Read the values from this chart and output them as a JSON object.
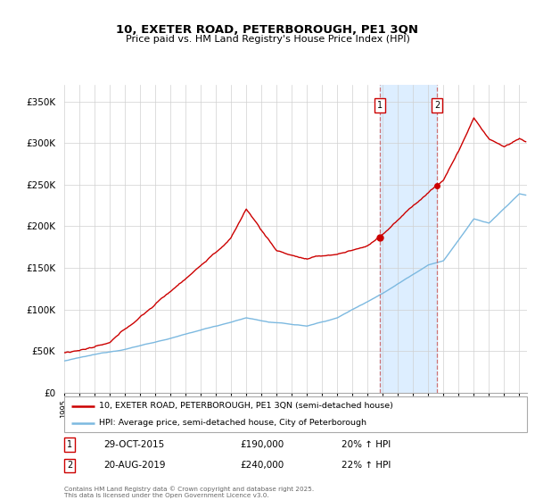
{
  "title": "10, EXETER ROAD, PETERBOROUGH, PE1 3QN",
  "subtitle": "Price paid vs. HM Land Registry's House Price Index (HPI)",
  "legend_line1": "10, EXETER ROAD, PETERBOROUGH, PE1 3QN (semi-detached house)",
  "legend_line2": "HPI: Average price, semi-detached house, City of Peterborough",
  "annotation1_date": "29-OCT-2015",
  "annotation1_price": "£190,000",
  "annotation1_hpi": "20% ↑ HPI",
  "annotation2_date": "20-AUG-2019",
  "annotation2_price": "£240,000",
  "annotation2_hpi": "22% ↑ HPI",
  "footer": "Contains HM Land Registry data © Crown copyright and database right 2025.\nThis data is licensed under the Open Government Licence v3.0.",
  "red_color": "#cc0000",
  "blue_color": "#7cb9e0",
  "highlight_color": "#ddeeff",
  "ann_box_edge": "#cc0000",
  "ylim": [
    0,
    370000
  ],
  "yticks": [
    0,
    50000,
    100000,
    150000,
    200000,
    250000,
    300000,
    350000
  ],
  "ann1_year": 2015.83,
  "ann2_year": 2019.58,
  "ann1_price_val": 190000,
  "ann2_price_val": 240000
}
